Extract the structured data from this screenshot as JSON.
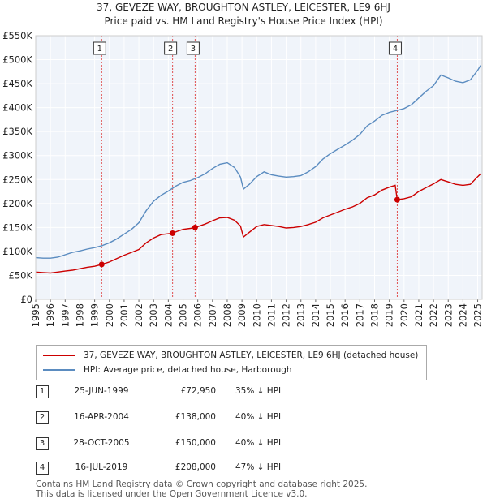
{
  "title_line1": "37, GEVEZE WAY, BROUGHTON ASTLEY, LEICESTER, LE9 6HJ",
  "title_line2": "Price paid vs. HM Land Registry's House Price Index (HPI)",
  "chart_data": {
    "type": "line",
    "title": "37, GEVEZE WAY, BROUGHTON ASTLEY, LEICESTER, LE9 6HJ — Price paid vs. HM Land Registry's House Price Index (HPI)",
    "xlabel": "",
    "ylabel": "",
    "xlim": [
      1995,
      2025.3
    ],
    "ylim": [
      0,
      550000
    ],
    "y_ticks": [
      0,
      50000,
      100000,
      150000,
      200000,
      250000,
      300000,
      350000,
      400000,
      450000,
      500000,
      550000
    ],
    "y_tick_labels": [
      "£0",
      "£50K",
      "£100K",
      "£150K",
      "£200K",
      "£250K",
      "£300K",
      "£350K",
      "£400K",
      "£450K",
      "£500K",
      "£550K"
    ],
    "x_ticks": [
      1995,
      1996,
      1997,
      1998,
      1999,
      2000,
      2001,
      2002,
      2003,
      2004,
      2005,
      2006,
      2007,
      2008,
      2009,
      2010,
      2011,
      2012,
      2013,
      2014,
      2015,
      2016,
      2017,
      2018,
      2019,
      2020,
      2021,
      2022,
      2023,
      2024,
      2025
    ],
    "grid": true,
    "colors": {
      "property": "#cc0000",
      "hpi": "#5b8cc0",
      "marker_line": "#e05050",
      "grid": "#dddddd",
      "plot_bg": "#f0f4fa"
    },
    "series": [
      {
        "name": "37, GEVEZE WAY, BROUGHTON ASTLEY, LEICESTER, LE9 6HJ (detached house)",
        "color": "#cc0000",
        "points": [
          [
            1995.0,
            57000
          ],
          [
            1995.5,
            56000
          ],
          [
            1996.0,
            55000
          ],
          [
            1996.5,
            57000
          ],
          [
            1997.0,
            59000
          ],
          [
            1997.5,
            61000
          ],
          [
            1998.0,
            64000
          ],
          [
            1998.5,
            67000
          ],
          [
            1999.0,
            69000
          ],
          [
            1999.48,
            72950
          ],
          [
            2000.0,
            78000
          ],
          [
            2000.5,
            85000
          ],
          [
            2001.0,
            92000
          ],
          [
            2001.5,
            98000
          ],
          [
            2002.0,
            104000
          ],
          [
            2002.5,
            118000
          ],
          [
            2003.0,
            128000
          ],
          [
            2003.5,
            135000
          ],
          [
            2004.29,
            138000
          ],
          [
            2004.6,
            142000
          ],
          [
            2005.0,
            146000
          ],
          [
            2005.5,
            148000
          ],
          [
            2005.82,
            150000
          ],
          [
            2006.5,
            157000
          ],
          [
            2007.0,
            164000
          ],
          [
            2007.5,
            170000
          ],
          [
            2008.0,
            171000
          ],
          [
            2008.5,
            165000
          ],
          [
            2008.9,
            153000
          ],
          [
            2009.1,
            130000
          ],
          [
            2009.5,
            140000
          ],
          [
            2010.0,
            152000
          ],
          [
            2010.5,
            156000
          ],
          [
            2011.0,
            154000
          ],
          [
            2011.5,
            152000
          ],
          [
            2012.0,
            149000
          ],
          [
            2012.5,
            150000
          ],
          [
            2013.0,
            152000
          ],
          [
            2013.5,
            156000
          ],
          [
            2014.0,
            161000
          ],
          [
            2014.5,
            170000
          ],
          [
            2015.0,
            176000
          ],
          [
            2015.5,
            182000
          ],
          [
            2016.0,
            188000
          ],
          [
            2016.5,
            193000
          ],
          [
            2017.0,
            200000
          ],
          [
            2017.5,
            212000
          ],
          [
            2018.0,
            218000
          ],
          [
            2018.5,
            228000
          ],
          [
            2019.0,
            234000
          ],
          [
            2019.4,
            238000
          ],
          [
            2019.54,
            208000
          ],
          [
            2020.0,
            210000
          ],
          [
            2020.5,
            214000
          ],
          [
            2021.0,
            225000
          ],
          [
            2021.5,
            233000
          ],
          [
            2022.0,
            241000
          ],
          [
            2022.5,
            250000
          ],
          [
            2023.0,
            245000
          ],
          [
            2023.5,
            240000
          ],
          [
            2024.0,
            238000
          ],
          [
            2024.5,
            240000
          ],
          [
            2025.0,
            256000
          ],
          [
            2025.2,
            262000
          ]
        ]
      },
      {
        "name": "HPI: Average price, detached house, Harborough",
        "color": "#5b8cc0",
        "points": [
          [
            1995.0,
            87000
          ],
          [
            1995.5,
            86000
          ],
          [
            1996.0,
            86000
          ],
          [
            1996.5,
            88000
          ],
          [
            1997.0,
            93000
          ],
          [
            1997.5,
            98000
          ],
          [
            1998.0,
            101000
          ],
          [
            1998.5,
            105000
          ],
          [
            1999.0,
            108000
          ],
          [
            1999.5,
            112000
          ],
          [
            2000.0,
            118000
          ],
          [
            2000.5,
            126000
          ],
          [
            2001.0,
            136000
          ],
          [
            2001.5,
            146000
          ],
          [
            2002.0,
            160000
          ],
          [
            2002.5,
            185000
          ],
          [
            2003.0,
            205000
          ],
          [
            2003.5,
            217000
          ],
          [
            2004.0,
            226000
          ],
          [
            2004.5,
            236000
          ],
          [
            2005.0,
            244000
          ],
          [
            2005.5,
            248000
          ],
          [
            2006.0,
            254000
          ],
          [
            2006.5,
            262000
          ],
          [
            2007.0,
            273000
          ],
          [
            2007.5,
            282000
          ],
          [
            2008.0,
            285000
          ],
          [
            2008.5,
            275000
          ],
          [
            2008.9,
            255000
          ],
          [
            2009.1,
            230000
          ],
          [
            2009.5,
            240000
          ],
          [
            2010.0,
            256000
          ],
          [
            2010.5,
            266000
          ],
          [
            2011.0,
            260000
          ],
          [
            2011.5,
            257000
          ],
          [
            2012.0,
            255000
          ],
          [
            2012.5,
            256000
          ],
          [
            2013.0,
            258000
          ],
          [
            2013.5,
            266000
          ],
          [
            2014.0,
            277000
          ],
          [
            2014.5,
            293000
          ],
          [
            2015.0,
            304000
          ],
          [
            2015.5,
            313000
          ],
          [
            2016.0,
            322000
          ],
          [
            2016.5,
            332000
          ],
          [
            2017.0,
            344000
          ],
          [
            2017.5,
            362000
          ],
          [
            2018.0,
            372000
          ],
          [
            2018.5,
            384000
          ],
          [
            2019.0,
            390000
          ],
          [
            2019.5,
            394000
          ],
          [
            2020.0,
            398000
          ],
          [
            2020.5,
            406000
          ],
          [
            2021.0,
            420000
          ],
          [
            2021.5,
            434000
          ],
          [
            2022.0,
            446000
          ],
          [
            2022.5,
            468000
          ],
          [
            2023.0,
            462000
          ],
          [
            2023.5,
            455000
          ],
          [
            2024.0,
            452000
          ],
          [
            2024.5,
            458000
          ],
          [
            2025.0,
            478000
          ],
          [
            2025.2,
            488000
          ]
        ]
      }
    ],
    "sales": [
      {
        "id": "1",
        "x": 1999.48,
        "value": 72950
      },
      {
        "id": "2",
        "x": 2004.29,
        "value": 138000
      },
      {
        "id": "3",
        "x": 2005.82,
        "value": 150000
      },
      {
        "id": "4",
        "x": 2019.54,
        "value": 208000
      }
    ]
  },
  "legend": {
    "property_label": "37, GEVEZE WAY, BROUGHTON ASTLEY, LEICESTER, LE9 6HJ (detached house)",
    "hpi_label": "HPI: Average price, detached house, Harborough"
  },
  "table": [
    {
      "num": "1",
      "date": "25-JUN-1999",
      "price": "£72,950",
      "hpi": "35% ↓ HPI"
    },
    {
      "num": "2",
      "date": "16-APR-2004",
      "price": "£138,000",
      "hpi": "40% ↓ HPI"
    },
    {
      "num": "3",
      "date": "28-OCT-2005",
      "price": "£150,000",
      "hpi": "40% ↓ HPI"
    },
    {
      "num": "4",
      "date": "16-JUL-2019",
      "price": "£208,000",
      "hpi": "47% ↓ HPI"
    }
  ],
  "footer_line1": "Contains HM Land Registry data © Crown copyright and database right 2025.",
  "footer_line2": "This data is licensed under the Open Government Licence v3.0."
}
